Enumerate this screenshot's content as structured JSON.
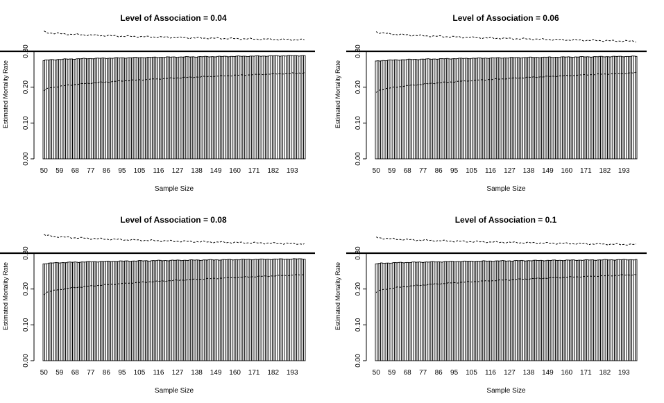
{
  "chart_data": [
    {
      "type": "bar",
      "title": "Level of Association = 0.04",
      "xlabel": "Sample Size",
      "ylabel": "Estimated Mortality Rate",
      "x_start": 50,
      "x_end": 200,
      "x_tick_labels": [
        "50",
        "59",
        "68",
        "77",
        "86",
        "95",
        "105",
        "116",
        "127",
        "138",
        "149",
        "160",
        "171",
        "182",
        "193"
      ],
      "y_tick_labels": [
        "0.00",
        "0.10",
        "0.20",
        "0.30"
      ],
      "ylim": [
        0,
        0.36
      ],
      "reference_line": 0.3,
      "bar_mean": {
        "start": 0.274,
        "end": 0.288
      },
      "lower_bound": {
        "start": 0.19,
        "end": 0.24
      },
      "upper_bound": {
        "start": 0.355,
        "end": 0.332
      }
    },
    {
      "type": "bar",
      "title": "Level of Association = 0.06",
      "xlabel": "Sample Size",
      "ylabel": "Estimated Mortality Rate",
      "x_start": 50,
      "x_end": 200,
      "x_tick_labels": [
        "50",
        "59",
        "68",
        "77",
        "86",
        "95",
        "105",
        "116",
        "127",
        "138",
        "149",
        "160",
        "171",
        "182",
        "193"
      ],
      "y_tick_labels": [
        "0.00",
        "0.10",
        "0.20",
        "0.30"
      ],
      "ylim": [
        0,
        0.36
      ],
      "reference_line": 0.3,
      "bar_mean": {
        "start": 0.272,
        "end": 0.286
      },
      "lower_bound": {
        "start": 0.185,
        "end": 0.24
      },
      "upper_bound": {
        "start": 0.355,
        "end": 0.328
      }
    },
    {
      "type": "bar",
      "title": "Level of Association = 0.08",
      "xlabel": "Sample Size",
      "ylabel": "Estimated Mortality Rate",
      "x_start": 50,
      "x_end": 200,
      "x_tick_labels": [
        "50",
        "59",
        "68",
        "77",
        "86",
        "95",
        "105",
        "116",
        "127",
        "138",
        "149",
        "160",
        "171",
        "182",
        "193"
      ],
      "y_tick_labels": [
        "0.00",
        "0.10",
        "0.20",
        "0.30"
      ],
      "ylim": [
        0,
        0.36
      ],
      "reference_line": 0.3,
      "bar_mean": {
        "start": 0.27,
        "end": 0.284
      },
      "lower_bound": {
        "start": 0.185,
        "end": 0.24
      },
      "upper_bound": {
        "start": 0.352,
        "end": 0.326
      }
    },
    {
      "type": "bar",
      "title": "Level of Association = 0.1",
      "xlabel": "Sample Size",
      "ylabel": "Estimated Mortality Rate",
      "x_start": 50,
      "x_end": 200,
      "x_tick_labels": [
        "50",
        "59",
        "68",
        "77",
        "86",
        "95",
        "105",
        "116",
        "127",
        "138",
        "149",
        "160",
        "171",
        "182",
        "193"
      ],
      "y_tick_labels": [
        "0.00",
        "0.10",
        "0.20",
        "0.30"
      ],
      "ylim": [
        0,
        0.36
      ],
      "reference_line": 0.3,
      "bar_mean": {
        "start": 0.27,
        "end": 0.282
      },
      "lower_bound": {
        "start": 0.19,
        "end": 0.24
      },
      "upper_bound": {
        "start": 0.345,
        "end": 0.324
      }
    }
  ]
}
